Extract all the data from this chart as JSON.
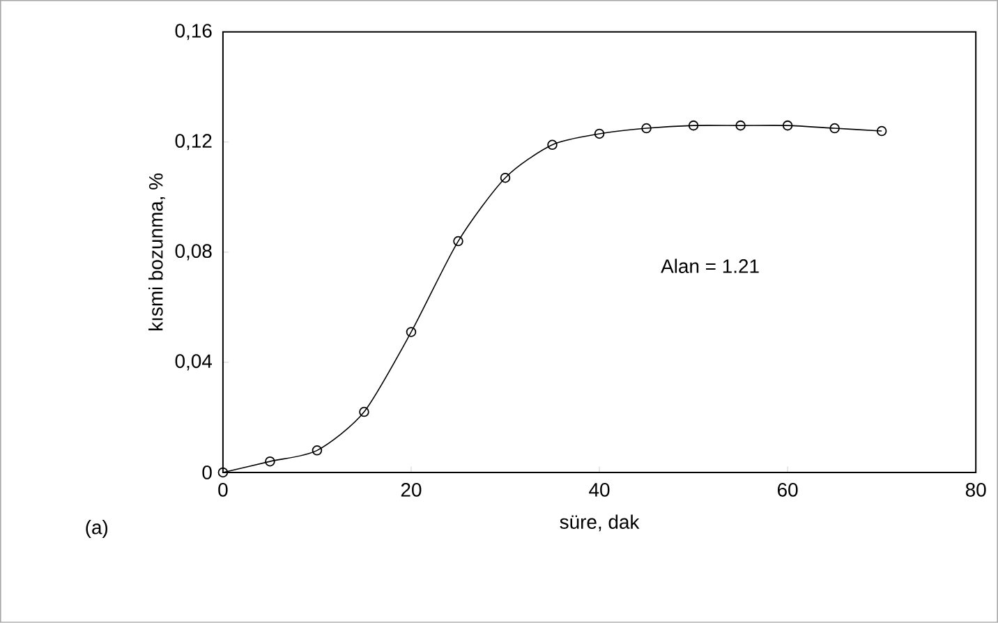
{
  "chart_data": {
    "type": "scatter",
    "xlabel": "süre, dak",
    "ylabel": "kısmi bozunma, %",
    "annotations": [
      "Alan = 1.21",
      "(a)"
    ],
    "x": [
      0,
      5,
      10,
      15,
      20,
      25,
      30,
      35,
      40,
      45,
      50,
      55,
      60,
      65,
      70
    ],
    "series": [
      {
        "color": "#000000",
        "marker": "circle",
        "values": [
          0,
          0.004,
          0.008,
          0.022,
          0.051,
          0.084,
          0.107,
          0.119,
          0.123,
          0.125,
          0.126,
          0.126,
          0.126,
          0.125,
          0.124
        ]
      },
      {
        "type": "line",
        "color": "#000000",
        "values": [
          0,
          0.004,
          0.008,
          0.022,
          0.051,
          0.084,
          0.107,
          0.119,
          0.123,
          0.125,
          0.126,
          0.126,
          0.126,
          0.125,
          0.124
        ]
      }
    ],
    "xlim": [
      0,
      80
    ],
    "xticks": [
      0,
      20,
      40,
      60,
      80
    ],
    "ylim": [
      0,
      0.16
    ],
    "yticks": [
      {
        "value": 0,
        "label": "0"
      },
      {
        "value": 0.04,
        "label": "0,04"
      },
      {
        "value": 0.08,
        "label": "0,08"
      },
      {
        "value": 0.12,
        "label": "0,12"
      },
      {
        "value": 0.16,
        "label": "0,16"
      }
    ],
    "grid": false
  }
}
